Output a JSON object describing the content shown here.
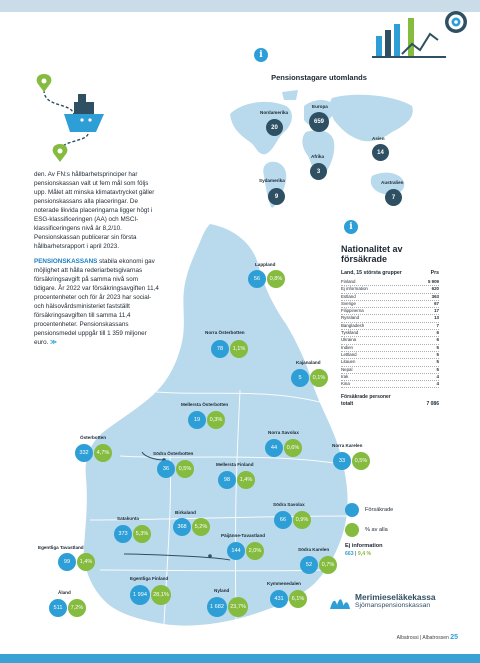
{
  "map_title": "Pensionstagare utomlands",
  "intro": {
    "p1": "den. Av FN:s hållbarhetsprinciper har pensionskassan valt ut fem mål som följs upp. Målet att minska klimatavtrycket gäller pensionskassans alla placeringar. De noterade likvida placeringarna ligger högt i ESG-klassificeringen (AA) och MSCI-klassificeringens nivå är 8,2/10. Pensionskassan publicerar sin första hållbarhetsrapport i april 2023.",
    "p2_highlight": "PENSIONSKASSANS",
    "p2": "stabila ekonomi gav möjlighet att hålla rederiarbetsgivarnas försäkringsavgift på samma nivå som tidigare. År 2022 var försäkringsavgiften 11,4 procentenheter och för år 2023 har social- och hälsovårdsministeriet fastställt försäkringsavgiften till samma 11,4 procentenheter. Pensionskassans pensionsmedel uppgår till 1 359 miljo­ner euro."
  },
  "world": [
    {
      "region": "Nordamerika",
      "value": "20"
    },
    {
      "region": "Europa",
      "value": "659"
    },
    {
      "region": "Asien",
      "value": "14"
    },
    {
      "region": "Afrika",
      "value": "3"
    },
    {
      "region": "Sydamerika",
      "value": "9"
    },
    {
      "region": "Australien",
      "value": "7"
    }
  ],
  "nationality": {
    "title": "Nationalitet av försäkrade",
    "col_left": "Land, 15 största grupper",
    "col_right": "Prs",
    "rows": [
      {
        "country": "Finland",
        "count": "5 909"
      },
      {
        "country": "Ej information",
        "count": "620"
      },
      {
        "country": "Estland",
        "count": "363"
      },
      {
        "country": "Sverige",
        "count": "67"
      },
      {
        "country": "Filippinerna",
        "count": "17"
      },
      {
        "country": "Ryssland",
        "count": "13"
      },
      {
        "country": "Bangladesh",
        "count": "7"
      },
      {
        "country": "Tyskland",
        "count": "6"
      },
      {
        "country": "Ukraina",
        "count": "6"
      },
      {
        "country": "Indien",
        "count": "5"
      },
      {
        "country": "Lettland",
        "count": "5"
      },
      {
        "country": "Litauen",
        "count": "5"
      },
      {
        "country": "Nepal",
        "count": "5"
      },
      {
        "country": "Irak",
        "count": "4"
      },
      {
        "country": "Kina",
        "count": "4"
      }
    ],
    "total_label": "Försäkrade personer totalt",
    "total_value": "7 086"
  },
  "regions": [
    {
      "name": "Lappland",
      "count": "56",
      "pct": "0,8%"
    },
    {
      "name": "Norra Österbotten",
      "count": "78",
      "pct": "1,1%"
    },
    {
      "name": "Kajanaland",
      "count": "5",
      "pct": "0,1%"
    },
    {
      "name": "Mellersta Österbotten",
      "count": "19",
      "pct": "0,3%"
    },
    {
      "name": "Österbotten",
      "count": "332",
      "pct": "4,7%"
    },
    {
      "name": "Norra Savolax",
      "count": "44",
      "pct": "0,6%"
    },
    {
      "name": "Norra Karelen",
      "count": "33",
      "pct": "0,5%"
    },
    {
      "name": "Södra Österbotten",
      "count": "36",
      "pct": "0,5%"
    },
    {
      "name": "Mellersta Finland",
      "count": "98",
      "pct": "1,4%"
    },
    {
      "name": "Satakunta",
      "count": "373",
      "pct": "5,3%"
    },
    {
      "name": "Birkaland",
      "count": "368",
      "pct": "5,2%"
    },
    {
      "name": "Södra Savolax",
      "count": "66",
      "pct": "0,9%"
    },
    {
      "name": "Egentliga Tavastland",
      "count": "99",
      "pct": "1,4%"
    },
    {
      "name": "Päijänne-Tavastland",
      "count": "144",
      "pct": "2,0%"
    },
    {
      "name": "Södra Karelen",
      "count": "52",
      "pct": "0,7%"
    },
    {
      "name": "Åland",
      "count": "511",
      "pct": "7,2%"
    },
    {
      "name": "Egentliga Finland",
      "count": "1 994",
      "pct": "28,1%"
    },
    {
      "name": "Nyland",
      "count": "1 682",
      "pct": "23,7%"
    },
    {
      "name": "Kymmenedalen",
      "count": "431",
      "pct": "6,1%"
    }
  ],
  "legend": {
    "forsakrade": "Försäkrade",
    "pct": "% av alla",
    "ej_label": "Ej information",
    "ej_count": "663",
    "ej_pct": "9,4 %"
  },
  "logo": {
    "line1": "Merimieseläkekassa",
    "line2": "Sjömanspensionskassan"
  },
  "footer": {
    "publication": "Albatrossi | Albatrossen",
    "page": "25"
  },
  "colors": {
    "blue": "#2e9fd6",
    "green": "#85bb3e",
    "dark": "#2f4f63",
    "map": "#b9d9ec"
  }
}
